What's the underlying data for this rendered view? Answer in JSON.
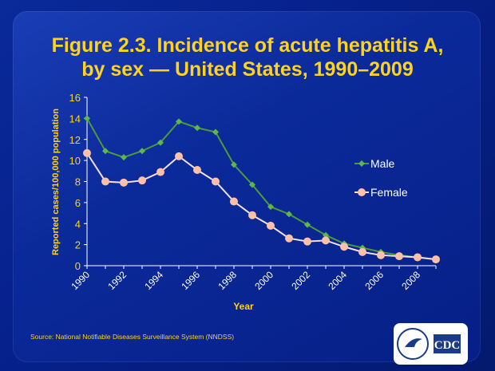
{
  "title_line1": "Figure 2.3.  Incidence of acute hepatitis A,",
  "title_line2": "by sex — United States, 1990–2009",
  "source": "Source: National Notifiable Diseases Surveillance System (NNDSS)",
  "logo_text": "CDC",
  "colors": {
    "male": "#4c9a3c",
    "female": "#ffc0a8",
    "text": "#ffd21f"
  },
  "chart_data": {
    "type": "line",
    "xlabel": "Year",
    "ylabel": "Reported cases/100,000 population",
    "ylim": [
      0,
      16
    ],
    "yticks": [
      0,
      2,
      4,
      6,
      8,
      10,
      12,
      14,
      16
    ],
    "x": [
      1990,
      1991,
      1992,
      1993,
      1994,
      1995,
      1996,
      1997,
      1998,
      1999,
      2000,
      2001,
      2002,
      2003,
      2004,
      2005,
      2006,
      2007,
      2008,
      2009
    ],
    "xticklabels": [
      "1990",
      "1992",
      "1994",
      "1996",
      "1998",
      "2000",
      "2002",
      "2004",
      "2006",
      "2008"
    ],
    "legend": "right",
    "series": [
      {
        "name": "Male",
        "values": [
          14.0,
          10.9,
          10.3,
          10.9,
          11.7,
          13.7,
          13.1,
          12.7,
          9.6,
          7.7,
          5.6,
          4.9,
          3.9,
          2.9,
          2.1,
          1.7,
          1.3,
          1.0,
          0.8,
          0.6
        ]
      },
      {
        "name": "Female",
        "values": [
          10.7,
          8.0,
          7.9,
          8.1,
          8.9,
          10.4,
          9.1,
          8.0,
          6.1,
          4.8,
          3.8,
          2.6,
          2.3,
          2.4,
          1.8,
          1.3,
          1.0,
          0.9,
          0.8,
          0.6
        ]
      }
    ]
  }
}
